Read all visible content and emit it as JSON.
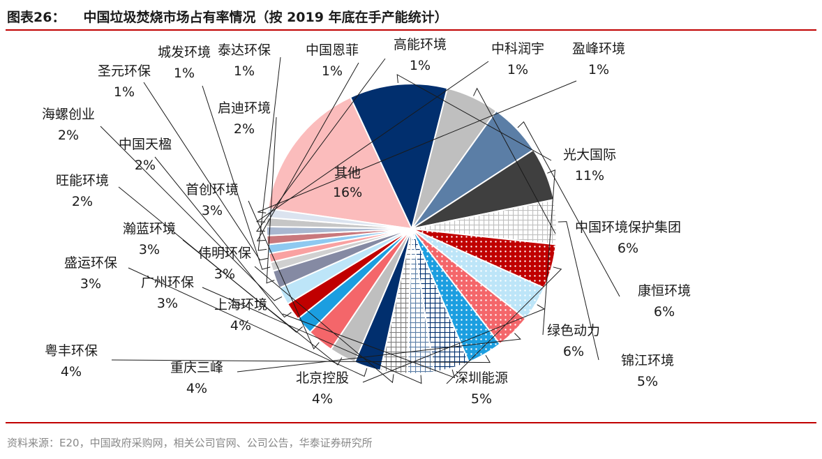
{
  "header": {
    "figure_label": "图表26：",
    "title": "中国垃圾焚烧市场占有率情况（按 2019 年底在手产能统计）"
  },
  "footer": {
    "source": "资料来源：E20，中国政府采购网，相关公司官网、公司公告，华泰证券研究所"
  },
  "chart_data": {
    "type": "pie",
    "title": "中国垃圾焚烧市场占有率情况（按 2019 年底在手产能统计）",
    "unit": "%",
    "slices": [
      {
        "label": "其他",
        "value": 16,
        "value_label": "16%",
        "color": "#fbbcbc",
        "pattern": "solid",
        "label_inside": true
      },
      {
        "label": "光大国际",
        "value": 11,
        "value_label": "11%",
        "color": "#012f6e",
        "pattern": "solid"
      },
      {
        "label": "中国环境保护集团",
        "value": 6,
        "value_label": "6%",
        "color": "#bfbfbf",
        "pattern": "solid"
      },
      {
        "label": "康恒环境",
        "value": 6,
        "value_label": "6%",
        "color": "#5b7ea6",
        "pattern": "solid"
      },
      {
        "label": "绿色动力",
        "value": 6,
        "value_label": "6%",
        "color": "#3f3f3f",
        "pattern": "solid"
      },
      {
        "label": "锦江环境",
        "value": 5,
        "value_label": "5%",
        "color": "#bfbfbf",
        "pattern": "grid"
      },
      {
        "label": "深圳能源",
        "value": 5,
        "value_label": "5%",
        "color": "#c00000",
        "pattern": "dots"
      },
      {
        "label": "北京控股",
        "value": 4,
        "value_label": "4%",
        "color": "#bde5f8",
        "pattern": "dots"
      },
      {
        "label": "重庆三峰",
        "value": 4,
        "value_label": "4%",
        "color": "#f4666a",
        "pattern": "dots"
      },
      {
        "label": "粤丰环保",
        "value": 4,
        "value_label": "4%",
        "color": "#1b9ee0",
        "pattern": "dots"
      },
      {
        "label": "上海环境",
        "value": 4,
        "value_label": "4%",
        "color": "#012f6e",
        "pattern": "grid"
      },
      {
        "label": "广州环保",
        "value": 3,
        "value_label": "3%",
        "color": "#5b7ea6",
        "pattern": "grid"
      },
      {
        "label": "伟明环保",
        "value": 3,
        "value_label": "3%",
        "color": "#7f7f7f",
        "pattern": "grid"
      },
      {
        "label": "盛运环保",
        "value": 3,
        "value_label": "3%",
        "color": "#012f6e",
        "pattern": "solid"
      },
      {
        "label": "瀚蓝环境",
        "value": 3,
        "value_label": "3%",
        "color": "#bfbfbf",
        "pattern": "solid"
      },
      {
        "label": "首创环境",
        "value": 3,
        "value_label": "3%",
        "color": "#f4666a",
        "pattern": "solid"
      },
      {
        "label": "旺能环境",
        "value": 2,
        "value_label": "2%",
        "color": "#1b9ee0",
        "pattern": "solid"
      },
      {
        "label": "中国天楹",
        "value": 2,
        "value_label": "2%",
        "color": "#c00000",
        "pattern": "solid"
      },
      {
        "label": "海螺创业",
        "value": 2,
        "value_label": "2%",
        "color": "#bde5f8",
        "pattern": "solid"
      },
      {
        "label": "启迪环境",
        "value": 2,
        "value_label": "2%",
        "color": "#858aa3",
        "pattern": "solid"
      },
      {
        "label": "城发环境",
        "value": 1,
        "value_label": "1%",
        "color": "#d0d0d0",
        "pattern": "solid"
      },
      {
        "label": "圣元环保",
        "value": 1,
        "value_label": "1%",
        "color": "#f9a1a1",
        "pattern": "solid"
      },
      {
        "label": "泰达环保",
        "value": 1,
        "value_label": "1%",
        "color": "#8ec9f0",
        "pattern": "solid"
      },
      {
        "label": "中国恩菲",
        "value": 1,
        "value_label": "1%",
        "color": "#c9787c",
        "pattern": "solid"
      },
      {
        "label": "高能环境",
        "value": 1,
        "value_label": "1%",
        "color": "#a9b7cf",
        "pattern": "solid"
      },
      {
        "label": "中科润宇",
        "value": 1,
        "value_label": "1%",
        "color": "#c6c6c6",
        "pattern": "solid"
      },
      {
        "label": "盈峰环境",
        "value": 1,
        "value_label": "1%",
        "color": "#dbe3ef",
        "pattern": "solid"
      }
    ],
    "legend": "none"
  }
}
